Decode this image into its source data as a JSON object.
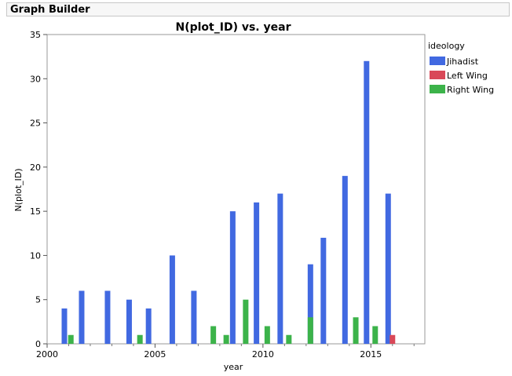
{
  "window": {
    "title": "Graph Builder"
  },
  "chart_data": {
    "type": "bar",
    "title": "N(plot_ID) vs. year",
    "xlabel": "year",
    "ylabel": "N(plot_ID)",
    "ylim": [
      0,
      35
    ],
    "yticks": [
      0,
      5,
      10,
      15,
      20,
      25,
      30,
      35
    ],
    "xlim": [
      2000,
      2017.5
    ],
    "xticks": [
      2000,
      2005,
      2010,
      2015
    ],
    "grid": false,
    "legend": {
      "title": "ideology",
      "position": "right"
    },
    "series": [
      {
        "name": "Jihadist",
        "color": "#4169e1",
        "points": [
          [
            2000.8,
            4
          ],
          [
            2001.6,
            6
          ],
          [
            2002.8,
            6
          ],
          [
            2003.8,
            5
          ],
          [
            2004.7,
            4
          ],
          [
            2005.8,
            10
          ],
          [
            2006.8,
            6
          ],
          [
            2008.6,
            15
          ],
          [
            2009.7,
            16
          ],
          [
            2010.8,
            17
          ],
          [
            2012.2,
            9
          ],
          [
            2012.8,
            12
          ],
          [
            2013.8,
            19
          ],
          [
            2014.8,
            32
          ],
          [
            2015.8,
            17
          ]
        ]
      },
      {
        "name": "Left Wing",
        "color": "#d94858",
        "points": [
          [
            2016.0,
            1
          ]
        ]
      },
      {
        "name": "Right Wing",
        "color": "#3cb34a",
        "points": [
          [
            2001.1,
            1
          ],
          [
            2004.3,
            1
          ],
          [
            2007.7,
            2
          ],
          [
            2008.3,
            1
          ],
          [
            2009.2,
            5
          ],
          [
            2010.2,
            2
          ],
          [
            2011.2,
            1
          ],
          [
            2012.2,
            3
          ],
          [
            2014.3,
            3
          ],
          [
            2015.2,
            2
          ]
        ]
      }
    ]
  }
}
